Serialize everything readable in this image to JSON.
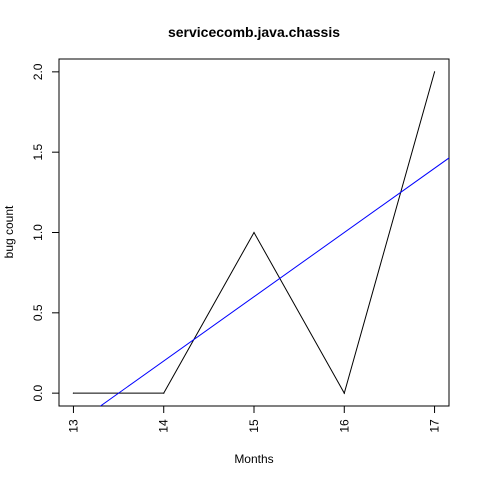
{
  "chart_data": {
    "type": "line",
    "title": "servicecomb.java.chassis",
    "xlabel": "Months",
    "ylabel": "bug count",
    "x": [
      13,
      14,
      15,
      16,
      17
    ],
    "series": [
      {
        "values": [
          0,
          0,
          1,
          0,
          2
        ],
        "color": "#000000"
      }
    ],
    "trend_line": {
      "slope": 0.4,
      "intercept": -5.4,
      "color": "#0000ff"
    },
    "x_ticks": [
      "13",
      "14",
      "15",
      "16",
      "17"
    ],
    "y_ticks": [
      "0.0",
      "0.5",
      "1.0",
      "1.5",
      "2.0"
    ],
    "xlim": [
      12.84,
      17.16
    ],
    "ylim": [
      -0.08,
      2.08
    ],
    "grid": false,
    "legend": "none"
  }
}
